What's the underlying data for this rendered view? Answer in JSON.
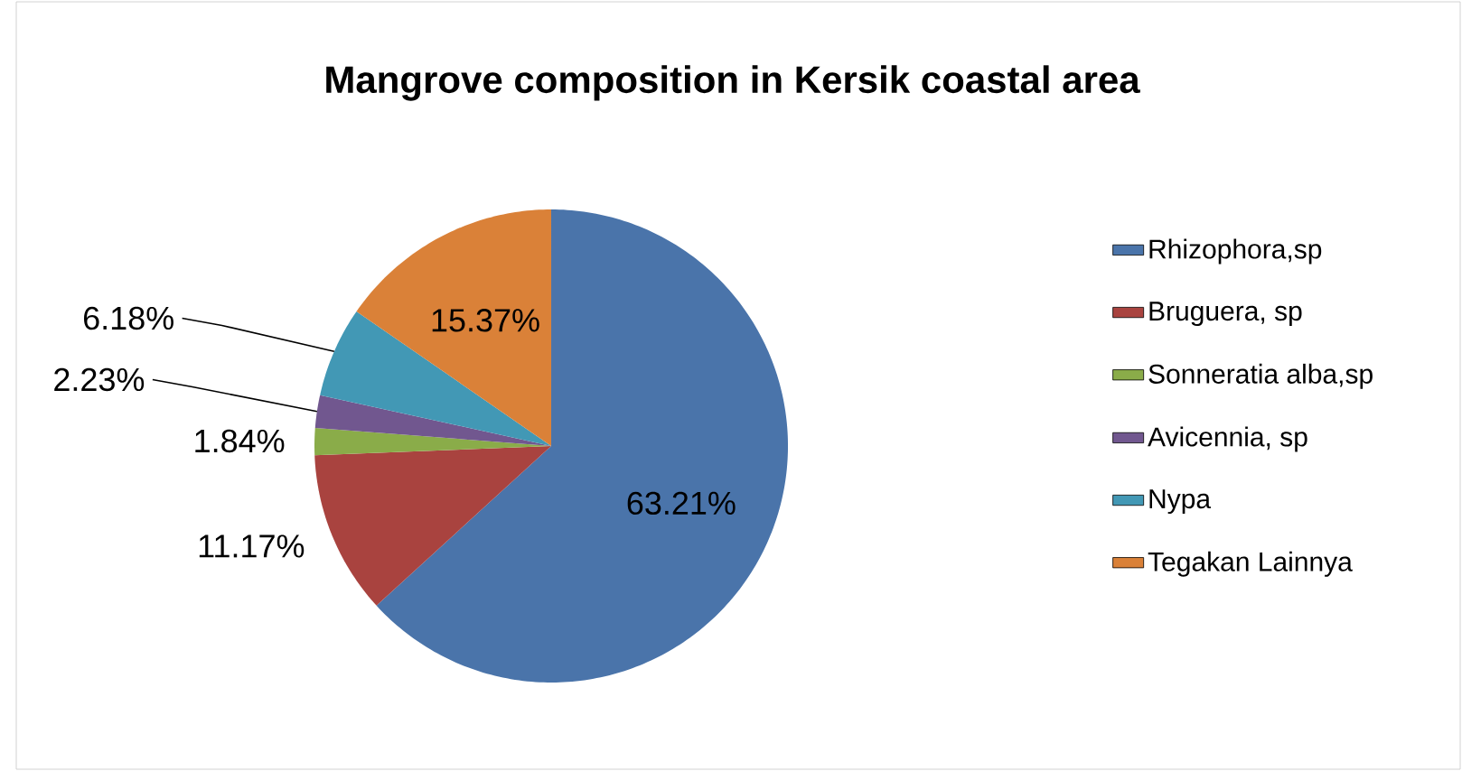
{
  "chart_data": {
    "type": "pie",
    "title": "Mangrove composition in Kersik coastal area",
    "categories": [
      "Rhizophora,sp",
      "Bruguera, sp",
      "Sonneratia alba,sp",
      "Avicennia, sp",
      "Nypa",
      "Tegakan Lainnya"
    ],
    "values": [
      63.21,
      11.17,
      1.84,
      2.23,
      6.18,
      15.37
    ],
    "value_labels": [
      "63.21%",
      "11.17%",
      "1.84%",
      "2.23%",
      "6.18%",
      "15.37%"
    ],
    "colors": [
      "#4a74aa",
      "#a9433f",
      "#8aac49",
      "#71578f",
      "#4298b5",
      "#da8138"
    ],
    "legend": "right"
  }
}
